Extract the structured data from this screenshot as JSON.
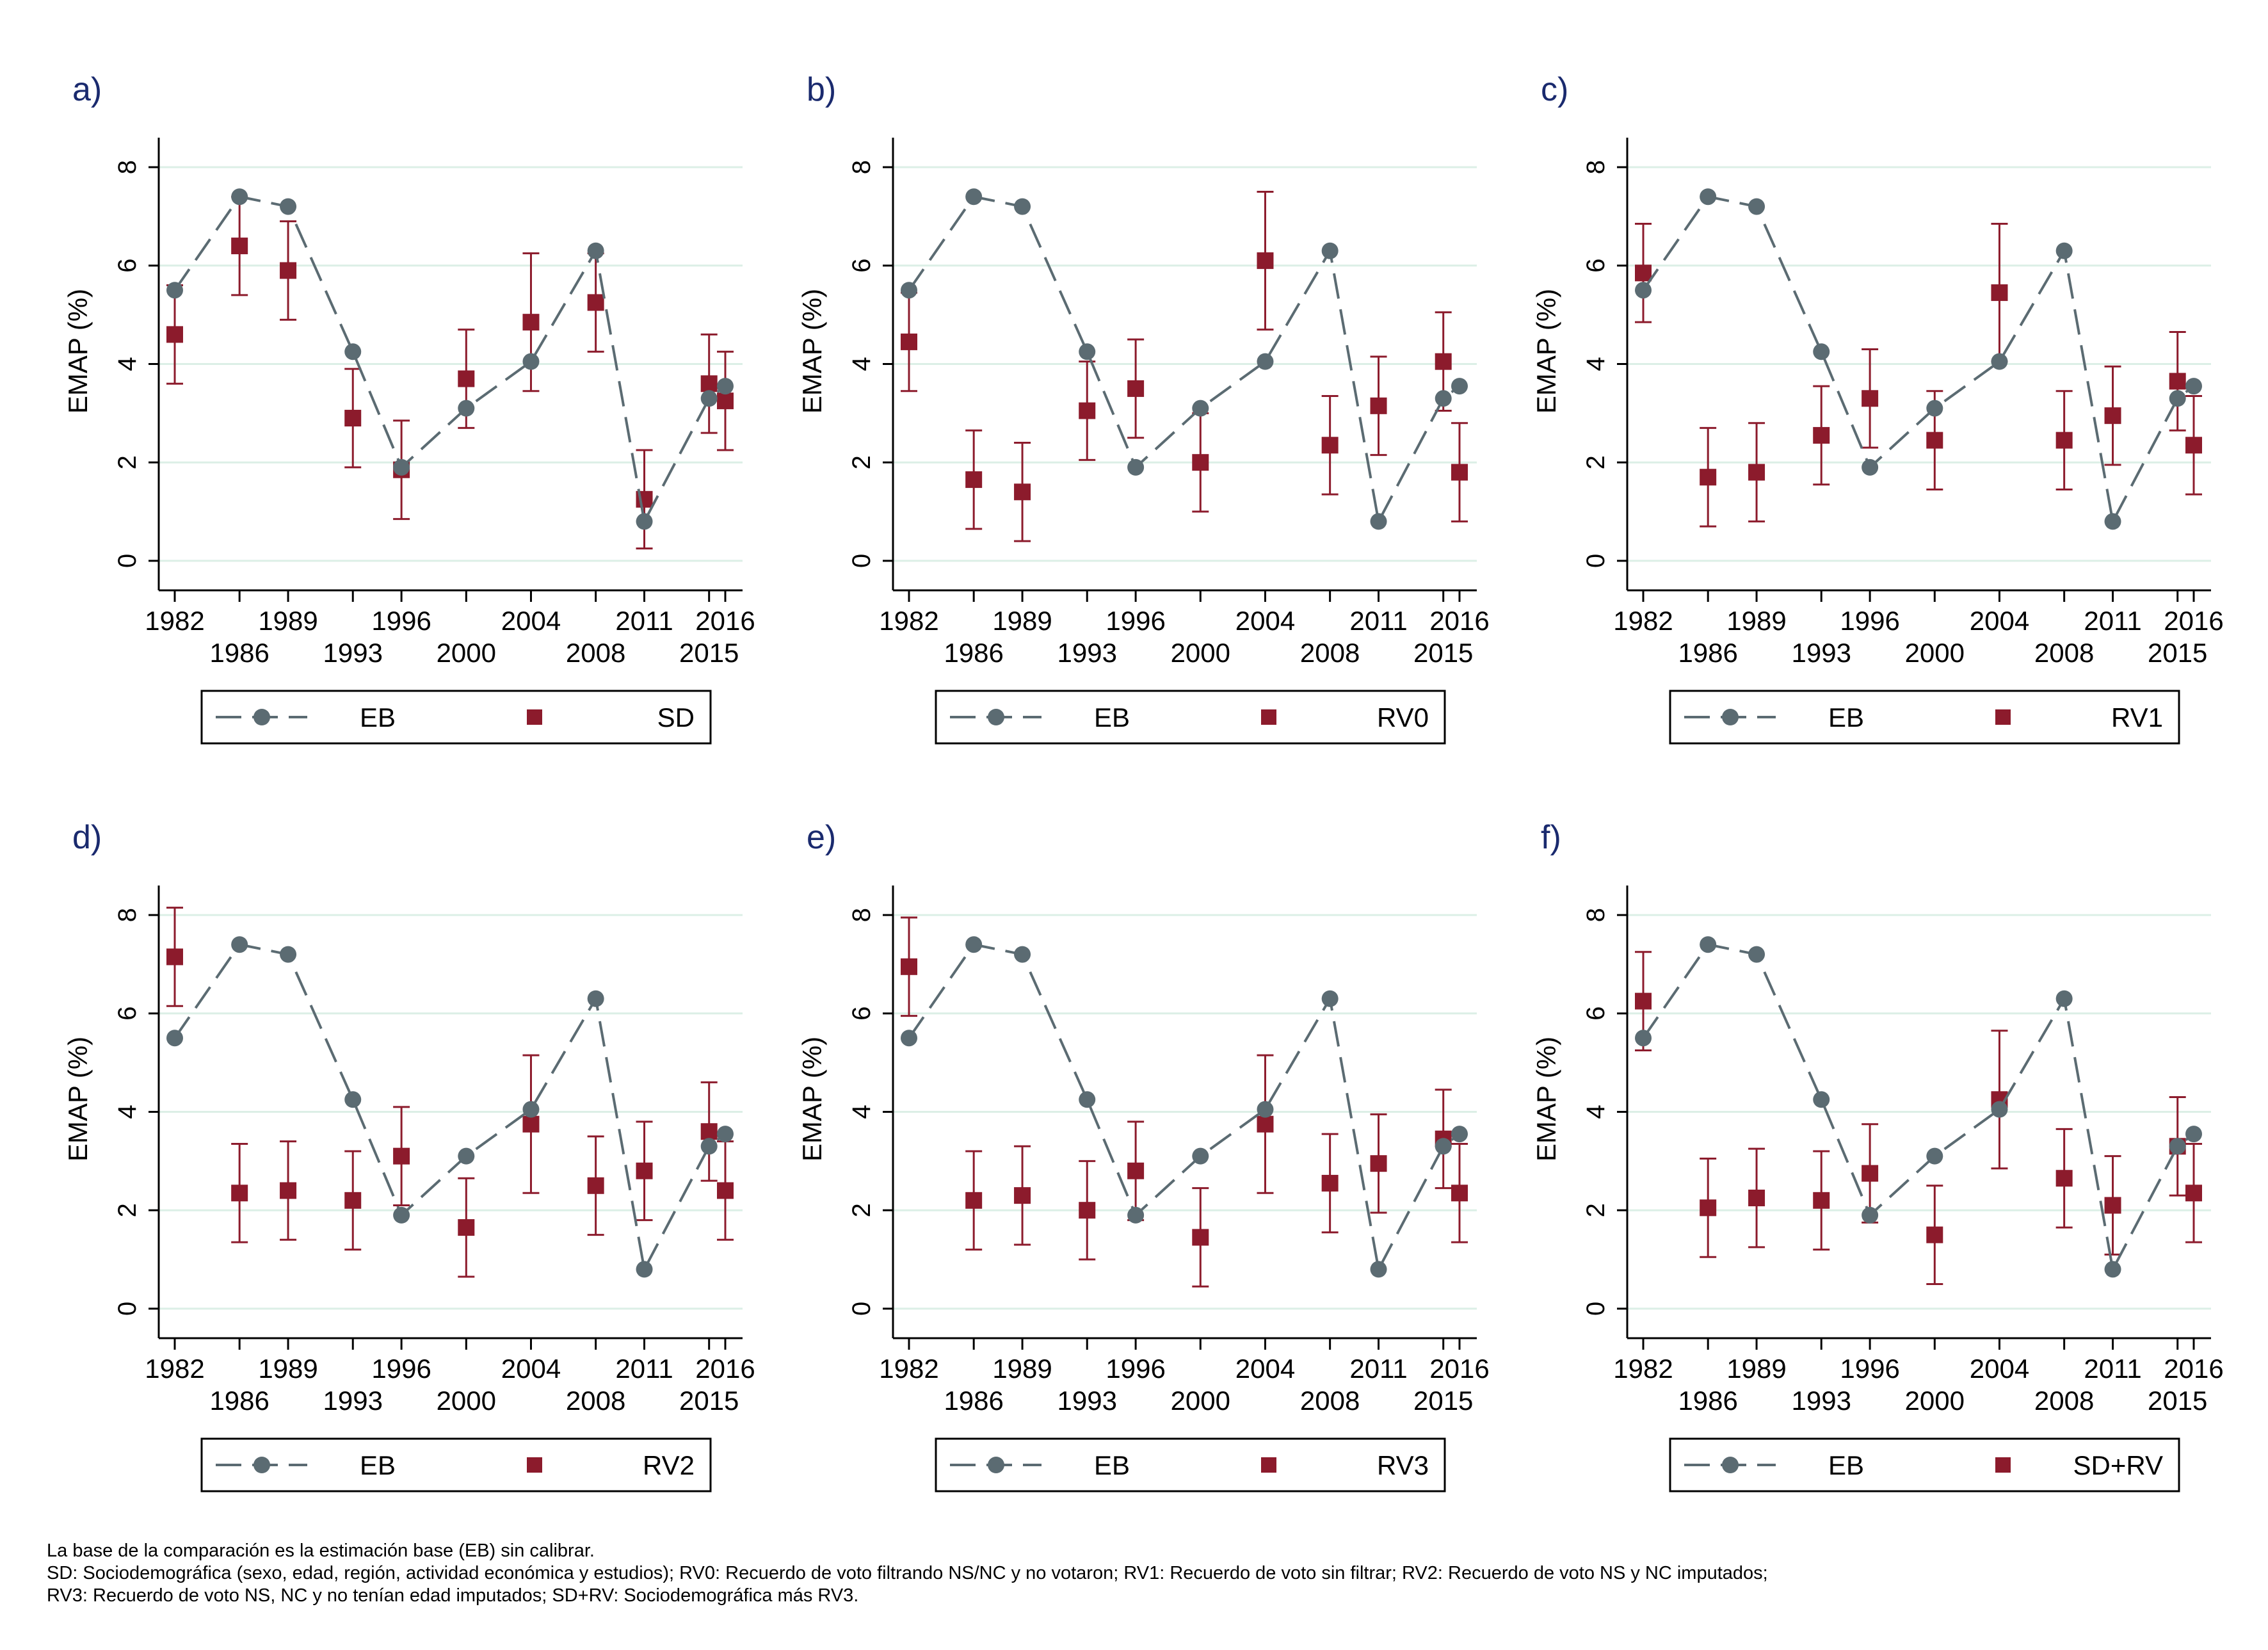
{
  "colors": {
    "eb": "#5b6b72",
    "sd": "#8c1b2c",
    "grid": "#dcefe6",
    "panel_label": "#1a2a6e"
  },
  "axes": {
    "ylabel": "EMAP (%)",
    "yticks": [
      0,
      2,
      4,
      6,
      8
    ],
    "ylim": [
      -0.6,
      8.6
    ],
    "xticks_upper": [
      "1982",
      "1989",
      "1996",
      "2004",
      "2011",
      "2016"
    ],
    "xticks_lower": [
      "1986",
      "1993",
      "2000",
      "2008",
      "2015"
    ]
  },
  "chart_data": [
    {
      "panel": "a)",
      "type": "line",
      "legend": [
        {
          "name": "EB",
          "marker": "circle",
          "style": "dashed"
        },
        {
          "name": "SD",
          "marker": "square"
        }
      ],
      "x": [
        "1982",
        "1986",
        "1989",
        "1993",
        "1996",
        "2000",
        "2004",
        "2008",
        "2011",
        "2015",
        "2016"
      ],
      "eb": [
        5.5,
        7.4,
        7.2,
        4.25,
        1.9,
        3.1,
        4.05,
        6.3,
        0.8,
        3.3,
        3.55
      ],
      "series": [
        {
          "name": "SD",
          "values": [
            4.6,
            6.4,
            5.9,
            2.9,
            1.85,
            3.7,
            4.85,
            5.25,
            1.25,
            3.6,
            3.25
          ],
          "ci_low": [
            3.6,
            5.4,
            4.9,
            1.9,
            0.85,
            2.7,
            3.45,
            4.25,
            0.25,
            2.6,
            2.25
          ],
          "ci_high": [
            5.6,
            7.4,
            6.9,
            3.9,
            2.85,
            4.7,
            6.25,
            6.25,
            2.25,
            4.6,
            4.25
          ]
        }
      ]
    },
    {
      "panel": "b)",
      "type": "line",
      "legend": [
        {
          "name": "EB",
          "marker": "circle",
          "style": "dashed"
        },
        {
          "name": "RV0",
          "marker": "square"
        }
      ],
      "x": [
        "1982",
        "1986",
        "1989",
        "1993",
        "1996",
        "2000",
        "2004",
        "2008",
        "2011",
        "2015",
        "2016"
      ],
      "eb": [
        5.5,
        7.4,
        7.2,
        4.25,
        1.9,
        3.1,
        4.05,
        6.3,
        0.8,
        3.3,
        3.55
      ],
      "series": [
        {
          "name": "RV0",
          "values": [
            4.45,
            1.65,
            1.4,
            3.05,
            3.5,
            2.0,
            6.1,
            2.35,
            3.15,
            4.05,
            1.8
          ],
          "ci_low": [
            3.45,
            0.65,
            0.4,
            2.05,
            2.5,
            1.0,
            4.7,
            1.35,
            2.15,
            3.05,
            0.8
          ],
          "ci_high": [
            5.45,
            2.65,
            2.4,
            4.05,
            4.5,
            3.0,
            7.5,
            3.35,
            4.15,
            5.05,
            2.8
          ]
        }
      ]
    },
    {
      "panel": "c)",
      "type": "line",
      "legend": [
        {
          "name": "EB",
          "marker": "circle",
          "style": "dashed"
        },
        {
          "name": "RV1",
          "marker": "square"
        }
      ],
      "x": [
        "1982",
        "1986",
        "1989",
        "1993",
        "1996",
        "2000",
        "2004",
        "2008",
        "2011",
        "2015",
        "2016"
      ],
      "eb": [
        5.5,
        7.4,
        7.2,
        4.25,
        1.9,
        3.1,
        4.05,
        6.3,
        0.8,
        3.3,
        3.55
      ],
      "series": [
        {
          "name": "RV1",
          "values": [
            5.85,
            1.7,
            1.8,
            2.55,
            3.3,
            2.45,
            5.45,
            2.45,
            2.95,
            3.65,
            2.35
          ],
          "ci_low": [
            4.85,
            0.7,
            0.8,
            1.55,
            2.3,
            1.45,
            4.05,
            1.45,
            1.95,
            2.65,
            1.35
          ],
          "ci_high": [
            6.85,
            2.7,
            2.8,
            3.55,
            4.3,
            3.45,
            6.85,
            3.45,
            3.95,
            4.65,
            3.35
          ]
        }
      ]
    },
    {
      "panel": "d)",
      "type": "line",
      "legend": [
        {
          "name": "EB",
          "marker": "circle",
          "style": "dashed"
        },
        {
          "name": "RV2",
          "marker": "square"
        }
      ],
      "x": [
        "1982",
        "1986",
        "1989",
        "1993",
        "1996",
        "2000",
        "2004",
        "2008",
        "2011",
        "2015",
        "2016"
      ],
      "eb": [
        5.5,
        7.4,
        7.2,
        4.25,
        1.9,
        3.1,
        4.05,
        6.3,
        0.8,
        3.3,
        3.55
      ],
      "series": [
        {
          "name": "RV2",
          "values": [
            7.15,
            2.35,
            2.4,
            2.2,
            3.1,
            1.65,
            3.75,
            2.5,
            2.8,
            3.6,
            2.4
          ],
          "ci_low": [
            6.15,
            1.35,
            1.4,
            1.2,
            2.1,
            0.65,
            2.35,
            1.5,
            1.8,
            2.6,
            1.4
          ],
          "ci_high": [
            8.15,
            3.35,
            3.4,
            3.2,
            4.1,
            2.65,
            5.15,
            3.5,
            3.8,
            4.6,
            3.4
          ]
        }
      ]
    },
    {
      "panel": "e)",
      "type": "line",
      "legend": [
        {
          "name": "EB",
          "marker": "circle",
          "style": "dashed"
        },
        {
          "name": "RV3",
          "marker": "square"
        }
      ],
      "x": [
        "1982",
        "1986",
        "1989",
        "1993",
        "1996",
        "2000",
        "2004",
        "2008",
        "2011",
        "2015",
        "2016"
      ],
      "eb": [
        5.5,
        7.4,
        7.2,
        4.25,
        1.9,
        3.1,
        4.05,
        6.3,
        0.8,
        3.3,
        3.55
      ],
      "series": [
        {
          "name": "RV3",
          "values": [
            6.95,
            2.2,
            2.3,
            2.0,
            2.8,
            1.45,
            3.75,
            2.55,
            2.95,
            3.45,
            2.35
          ],
          "ci_low": [
            5.95,
            1.2,
            1.3,
            1.0,
            1.8,
            0.45,
            2.35,
            1.55,
            1.95,
            2.45,
            1.35
          ],
          "ci_high": [
            7.95,
            3.2,
            3.3,
            3.0,
            3.8,
            2.45,
            5.15,
            3.55,
            3.95,
            4.45,
            3.35
          ]
        }
      ]
    },
    {
      "panel": "f)",
      "type": "line",
      "legend": [
        {
          "name": "EB",
          "marker": "circle",
          "style": "dashed"
        },
        {
          "name": "SD+RV",
          "marker": "square"
        }
      ],
      "x": [
        "1982",
        "1986",
        "1989",
        "1993",
        "1996",
        "2000",
        "2004",
        "2008",
        "2011",
        "2015",
        "2016"
      ],
      "eb": [
        5.5,
        7.4,
        7.2,
        4.25,
        1.9,
        3.1,
        4.05,
        6.3,
        0.8,
        3.3,
        3.55
      ],
      "series": [
        {
          "name": "SD+RV",
          "values": [
            6.25,
            2.05,
            2.25,
            2.2,
            2.75,
            1.5,
            4.25,
            2.65,
            2.1,
            3.3,
            2.35
          ],
          "ci_low": [
            5.25,
            1.05,
            1.25,
            1.2,
            1.75,
            0.5,
            2.85,
            1.65,
            1.1,
            2.3,
            1.35
          ],
          "ci_high": [
            7.25,
            3.05,
            3.25,
            3.2,
            3.75,
            2.5,
            5.65,
            3.65,
            3.1,
            4.3,
            3.35
          ]
        }
      ]
    }
  ],
  "notes": {
    "line1": "La base de la comparación es la estimación base (EB) sin calibrar.",
    "line2": "SD: Sociodemográfica (sexo, edad, región, actividad económica y estudios); RV0: Recuerdo de voto filtrando NS/NC y no votaron; RV1: Recuerdo de voto sin filtrar; RV2: Recuerdo de voto NS y NC imputados;",
    "line3": "RV3: Recuerdo de voto NS, NC y no tenían edad imputados; SD+RV: Sociodemográfica más RV3."
  }
}
